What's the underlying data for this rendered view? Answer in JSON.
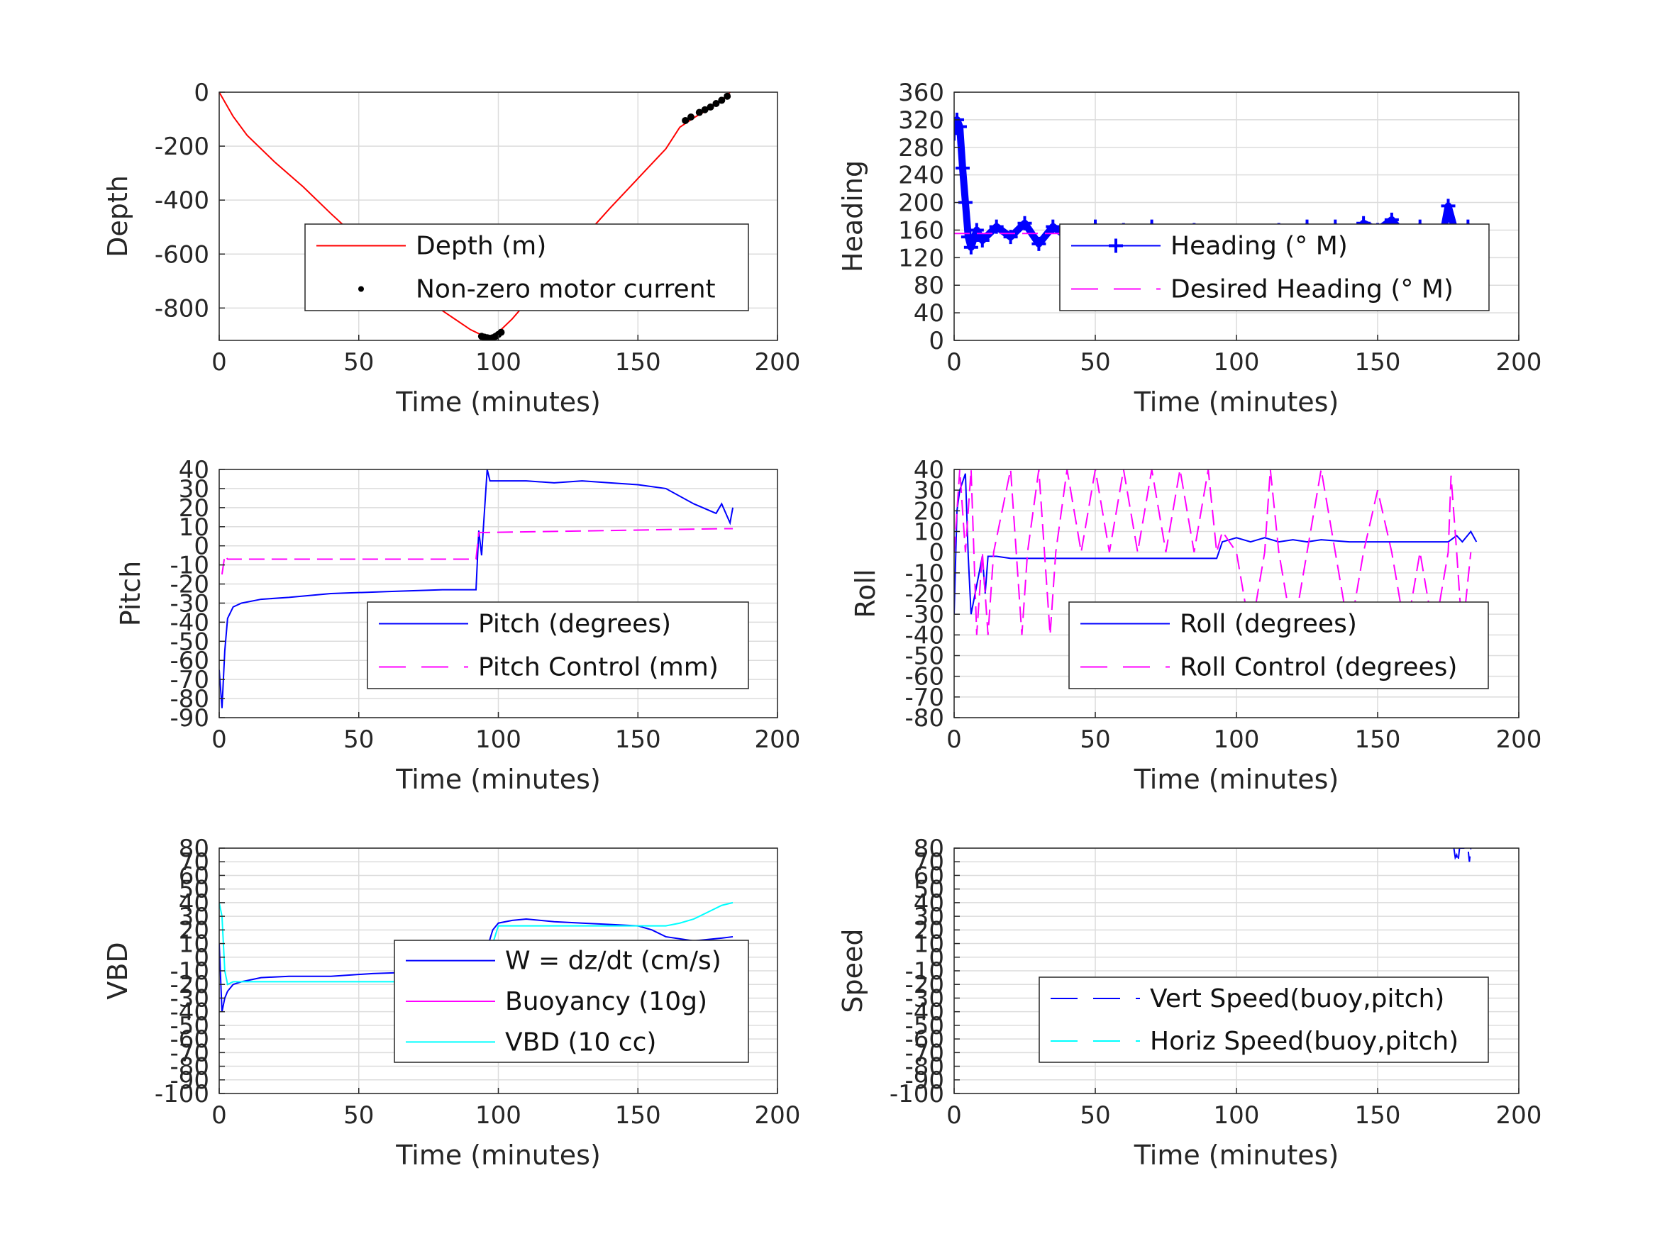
{
  "chart_data": [
    {
      "id": "depth",
      "type": "line",
      "xlabel": "Time (minutes)",
      "ylabel": "Depth",
      "xlim": [
        0,
        200
      ],
      "ylim": [
        -920,
        0
      ],
      "xticks": [
        0,
        50,
        100,
        150,
        200
      ],
      "yticks": [
        -800,
        -600,
        -400,
        -200,
        0
      ],
      "grid": true,
      "legend": "center-right",
      "series": [
        {
          "name": "Depth (m)",
          "style": "solid",
          "color": "#ff0000",
          "x": [
            0,
            5,
            10,
            20,
            30,
            40,
            50,
            60,
            70,
            80,
            90,
            95,
            97,
            100,
            105,
            110,
            120,
            130,
            140,
            150,
            160,
            165,
            170,
            175,
            180,
            183
          ],
          "y": [
            0,
            -90,
            -160,
            -260,
            -350,
            -450,
            -545,
            -640,
            -730,
            -810,
            -880,
            -905,
            -910,
            -890,
            -840,
            -780,
            -665,
            -545,
            -430,
            -320,
            -210,
            -130,
            -95,
            -65,
            -30,
            0
          ]
        },
        {
          "name": "Non-zero motor current",
          "style": "markers",
          "color": "#000000",
          "x": [
            94,
            95,
            96,
            97,
            98,
            99,
            100,
            101,
            167,
            169,
            172,
            174,
            176,
            178,
            180,
            182
          ],
          "y": [
            -905,
            -908,
            -910,
            -912,
            -910,
            -905,
            -898,
            -890,
            -105,
            -92,
            -75,
            -65,
            -55,
            -42,
            -30,
            -15
          ]
        }
      ]
    },
    {
      "id": "heading",
      "type": "scatter",
      "xlabel": "Time (minutes)",
      "ylabel": "Heading",
      "xlim": [
        0,
        200
      ],
      "ylim": [
        0,
        360
      ],
      "xticks": [
        0,
        50,
        100,
        150,
        200
      ],
      "yticks": [
        0,
        40,
        80,
        120,
        160,
        200,
        240,
        280,
        320,
        360
      ],
      "grid": true,
      "legend": "center-right",
      "series": [
        {
          "name": "Heading (° M)",
          "style": "plus",
          "color": "#0000ff",
          "x": [
            0,
            1,
            2,
            3,
            4,
            5,
            6,
            8,
            10,
            15,
            20,
            25,
            30,
            35,
            40,
            45,
            50,
            55,
            60,
            65,
            70,
            75,
            80,
            85,
            90,
            95,
            100,
            105,
            110,
            115,
            120,
            125,
            130,
            135,
            140,
            145,
            150,
            155,
            160,
            165,
            168,
            170,
            172,
            175,
            178,
            182,
            185
          ],
          "y": [
            300,
            320,
            310,
            250,
            200,
            150,
            135,
            160,
            145,
            165,
            150,
            170,
            140,
            165,
            150,
            155,
            165,
            150,
            160,
            145,
            165,
            155,
            150,
            160,
            150,
            115,
            125,
            140,
            150,
            160,
            150,
            165,
            155,
            165,
            145,
            170,
            160,
            175,
            150,
            165,
            130,
            80,
            130,
            195,
            150,
            165,
            150
          ]
        },
        {
          "name": "Desired Heading (° M)",
          "style": "dash",
          "color": "#ff00ff",
          "x": [
            0,
            185
          ],
          "y": [
            155,
            155
          ]
        }
      ]
    },
    {
      "id": "pitch",
      "type": "line",
      "xlabel": "Time (minutes)",
      "ylabel": "Pitch",
      "xlim": [
        0,
        200
      ],
      "ylim": [
        -90,
        40
      ],
      "xticks": [
        0,
        50,
        100,
        150,
        200
      ],
      "yticks": [
        -90,
        -80,
        -70,
        -60,
        -50,
        -40,
        -30,
        -20,
        -10,
        0,
        10,
        20,
        30,
        40
      ],
      "grid": true,
      "legend": "center-right",
      "series": [
        {
          "name": "Pitch (degrees)",
          "style": "solid",
          "color": "#0000ff",
          "x": [
            0,
            1,
            2,
            3,
            5,
            8,
            15,
            25,
            40,
            60,
            80,
            92,
            93,
            94,
            96,
            97,
            100,
            110,
            120,
            130,
            140,
            150,
            160,
            170,
            178,
            180,
            183,
            184
          ],
          "y": [
            -65,
            -85,
            -55,
            -38,
            -32,
            -30,
            -28,
            -27,
            -25,
            -24,
            -23,
            -23,
            8,
            -5,
            40,
            34,
            34,
            34,
            33,
            34,
            33,
            32,
            30,
            22,
            17,
            22,
            12,
            20
          ]
        },
        {
          "name": "Pitch Control (mm)",
          "style": "dash",
          "color": "#ff00ff",
          "x": [
            1,
            2,
            3,
            6,
            90,
            92,
            93,
            96,
            140,
            180,
            184
          ],
          "y": [
            -15,
            -5,
            -7,
            -7,
            -7,
            -7,
            7,
            7,
            8,
            9,
            9
          ]
        }
      ]
    },
    {
      "id": "roll",
      "type": "line",
      "xlabel": "Time (minutes)",
      "ylabel": "Roll",
      "xlim": [
        0,
        200
      ],
      "ylim": [
        -80,
        40
      ],
      "xticks": [
        0,
        50,
        100,
        150,
        200
      ],
      "yticks": [
        -80,
        -70,
        -60,
        -50,
        -40,
        -30,
        -20,
        -10,
        0,
        10,
        20,
        30,
        40
      ],
      "grid": true,
      "legend": "center-right",
      "series": [
        {
          "name": "Roll (degrees)",
          "style": "solid",
          "color": "#0000ff",
          "x": [
            0,
            1,
            2,
            4,
            5,
            6,
            10,
            11,
            12,
            15,
            20,
            30,
            40,
            50,
            60,
            70,
            80,
            90,
            93,
            95,
            100,
            105,
            110,
            115,
            120,
            125,
            130,
            140,
            150,
            160,
            170,
            175,
            178,
            180,
            183,
            185
          ],
          "y": [
            -30,
            20,
            30,
            38,
            -2,
            -30,
            -2,
            -20,
            -2,
            -2,
            -3,
            -3,
            -3,
            -3,
            -3,
            -3,
            -3,
            -3,
            -3,
            5,
            7,
            5,
            7,
            5,
            6,
            5,
            6,
            5,
            5,
            5,
            5,
            5,
            8,
            5,
            10,
            5
          ]
        },
        {
          "name": "Roll Control (degrees)",
          "style": "dash",
          "color": "#ff00ff",
          "x": [
            0,
            2,
            4,
            6,
            8,
            10,
            12,
            14,
            20,
            22,
            24,
            26,
            30,
            32,
            34,
            36,
            40,
            45,
            50,
            55,
            60,
            65,
            70,
            75,
            80,
            85,
            90,
            93,
            95,
            100,
            105,
            110,
            112,
            115,
            120,
            125,
            130,
            135,
            140,
            145,
            150,
            155,
            160,
            165,
            170,
            175,
            176,
            178,
            180,
            183
          ],
          "y": [
            0,
            40,
            0,
            40,
            -40,
            0,
            -40,
            0,
            40,
            0,
            -40,
            0,
            40,
            0,
            -40,
            0,
            40,
            0,
            40,
            0,
            40,
            0,
            40,
            0,
            40,
            0,
            40,
            0,
            10,
            0,
            -40,
            0,
            40,
            0,
            -40,
            0,
            40,
            0,
            -40,
            0,
            30,
            0,
            -40,
            0,
            -40,
            0,
            37,
            0,
            -40,
            0
          ]
        }
      ]
    },
    {
      "id": "vbd",
      "type": "line",
      "xlabel": "Time (minutes)",
      "ylabel": "VBD",
      "xlim": [
        0,
        200
      ],
      "ylim": [
        -100,
        80
      ],
      "xticks": [
        0,
        50,
        100,
        150,
        200
      ],
      "ytick_labels": [
        "-100",
        "-90",
        "-80",
        "-70",
        "-60",
        "-50",
        "-40",
        "-30",
        "-20",
        "-10",
        "0",
        "10",
        "20",
        "30",
        "40",
        "50",
        "60",
        "70",
        "80"
      ],
      "grid": true,
      "legend": "center-right",
      "series": [
        {
          "name": "W = dz/dt (cm/s)",
          "style": "solid",
          "color": "#0000ff",
          "x": [
            0,
            1,
            2,
            3,
            5,
            8,
            15,
            25,
            40,
            55,
            70,
            85,
            92,
            95,
            98,
            100,
            105,
            110,
            120,
            130,
            140,
            150,
            155,
            160,
            170,
            180,
            184
          ],
          "y": [
            10,
            -40,
            -30,
            -25,
            -20,
            -18,
            -15,
            -14,
            -14,
            -12,
            -11,
            -10,
            -12,
            0,
            20,
            25,
            27,
            28,
            26,
            25,
            24,
            23,
            20,
            15,
            12,
            14,
            15
          ]
        },
        {
          "name": "Buoyancy (10g)",
          "style": "solid",
          "color": "#ff00ff",
          "x": [],
          "y": []
        },
        {
          "name": "VBD (10 cc)",
          "style": "solid",
          "color": "#00ffff",
          "x": [
            0,
            1,
            2,
            3,
            5,
            40,
            80,
            92,
            95,
            98,
            100,
            140,
            160,
            165,
            170,
            175,
            180,
            184
          ],
          "y": [
            40,
            30,
            -10,
            -20,
            -18,
            -18,
            -18,
            -18,
            -10,
            10,
            23,
            23,
            23,
            25,
            28,
            33,
            38,
            40
          ]
        }
      ]
    },
    {
      "id": "speed",
      "type": "line",
      "xlabel": "Time (minutes)",
      "ylabel": "Speed",
      "xlim": [
        0,
        200
      ],
      "ylim": [
        -100,
        80
      ],
      "xticks": [
        0,
        50,
        100,
        150,
        200
      ],
      "ytick_labels": [
        "-100",
        "-90",
        "-80",
        "-70",
        "-60",
        "-50",
        "-40",
        "-30",
        "-20",
        "-10",
        "0",
        "10",
        "20",
        "30",
        "40",
        "50",
        "60",
        "70",
        "80"
      ],
      "grid": true,
      "legend": "center-right",
      "series": [
        {
          "name": "Vert Speed(buoy,pitch)",
          "style": "dash",
          "color": "#0000ff",
          "x": [
            177,
            177.5,
            178,
            178.5,
            179,
            182,
            182.5,
            183
          ],
          "y": [
            80,
            73,
            75,
            70,
            80,
            80,
            70,
            80
          ]
        },
        {
          "name": "Horiz Speed(buoy,pitch)",
          "style": "dash",
          "color": "#00ffff",
          "x": [],
          "y": []
        }
      ]
    }
  ]
}
